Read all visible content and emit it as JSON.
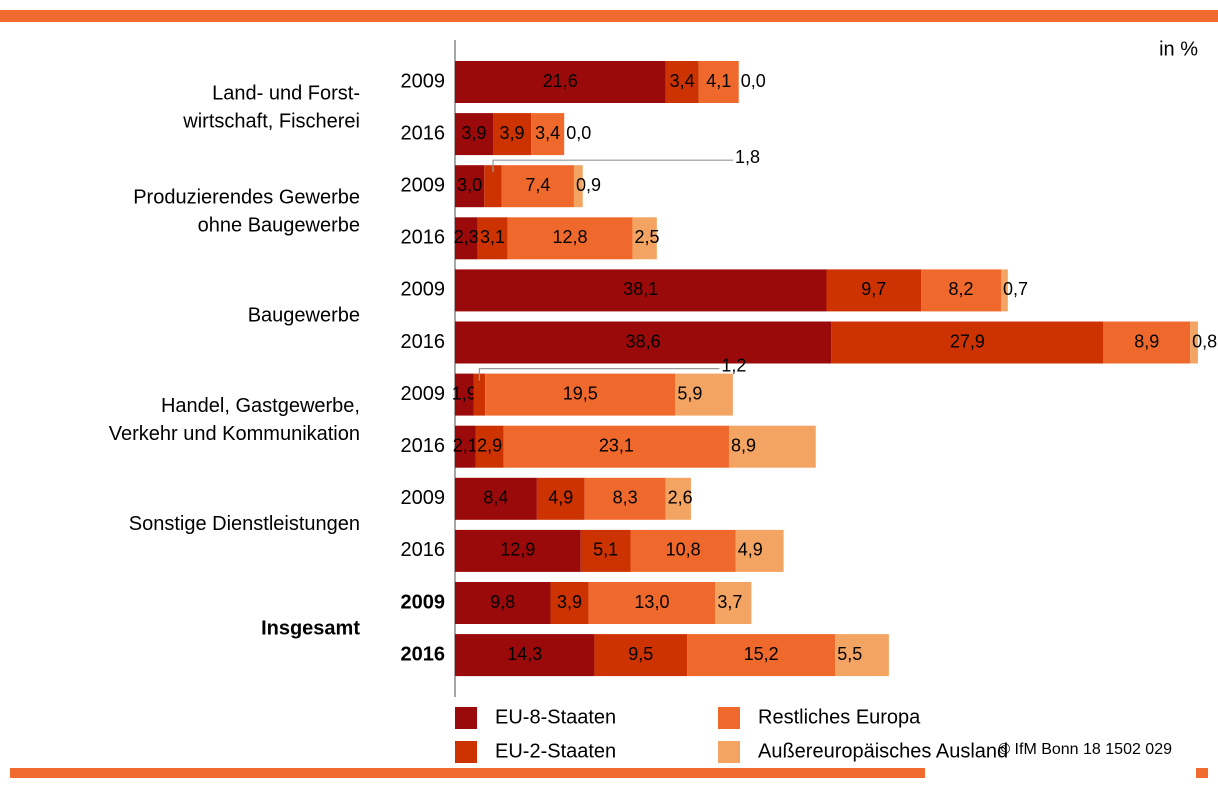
{
  "chart_data": {
    "type": "bar",
    "orientation": "horizontal",
    "stacked": true,
    "unit_label": "in %",
    "footer": "© IfM Bonn 18 1502 029",
    "categories": [
      "2009",
      "2016",
      "2009",
      "2016",
      "2009",
      "2016",
      "2009",
      "2016",
      "2009",
      "2016",
      "2009",
      "2016"
    ],
    "groups": [
      {
        "lines": [
          "Land- und Forst-",
          "wirtschaft, Fischerei"
        ]
      },
      {
        "lines": [
          "Produzierendes Gewerbe",
          "ohne Baugewerbe"
        ]
      },
      {
        "lines": [
          "Baugewerbe"
        ]
      },
      {
        "lines": [
          "Handel, Gastgewerbe,",
          "Verkehr und Kommunikation"
        ]
      },
      {
        "lines": [
          "Sonstige Dienstleistungen"
        ]
      },
      {
        "lines": [
          "Insgesamt"
        ],
        "bold": true
      }
    ],
    "series": [
      {
        "name": "EU-8-Staaten",
        "color": "#9a0a0a",
        "values": [
          21.6,
          3.9,
          3.0,
          2.3,
          38.1,
          38.6,
          1.9,
          2.1,
          8.4,
          12.9,
          9.8,
          14.3
        ],
        "value_labels": [
          "21,6",
          "3,9",
          "3,0",
          "2,3",
          "38,1",
          "38,6",
          "1,9",
          "2,1",
          "8,4",
          "12,9",
          "9,8",
          "14,3"
        ]
      },
      {
        "name": "EU-2-Staaten",
        "color": "#cc3300",
        "values": [
          3.4,
          3.9,
          1.8,
          3.1,
          9.7,
          27.9,
          1.2,
          2.9,
          4.9,
          5.1,
          3.9,
          9.5
        ],
        "value_labels": [
          "3,4",
          "3,9",
          "1,8",
          "3,1",
          "9,7",
          "27,9",
          "1,2",
          "2,9",
          "4,9",
          "5,1",
          "3,9",
          "9,5"
        ]
      },
      {
        "name": "Restliches Europa",
        "color": "#f0692c",
        "values": [
          4.1,
          3.4,
          7.4,
          12.8,
          8.2,
          8.9,
          19.5,
          23.1,
          8.3,
          10.8,
          13.0,
          15.2
        ],
        "value_labels": [
          "4,1",
          "3,4",
          "7,4",
          "12,8",
          "8,2",
          "8,9",
          "19,5",
          "23,1",
          "8,3",
          "10,8",
          "13,0",
          "15,2"
        ]
      },
      {
        "name": "Außereuropäisches Ausland",
        "color": "#f4a462",
        "values": [
          0.0,
          0.0,
          0.9,
          2.5,
          0.7,
          0.8,
          5.9,
          8.9,
          2.6,
          4.9,
          3.7,
          5.5
        ],
        "value_labels": [
          "0,0",
          "0,0",
          "0,9",
          "2,5",
          "0,7",
          "0,8",
          "5,9",
          "8,9",
          "2,6",
          "4,9",
          "3,7",
          "5,5"
        ]
      }
    ]
  }
}
